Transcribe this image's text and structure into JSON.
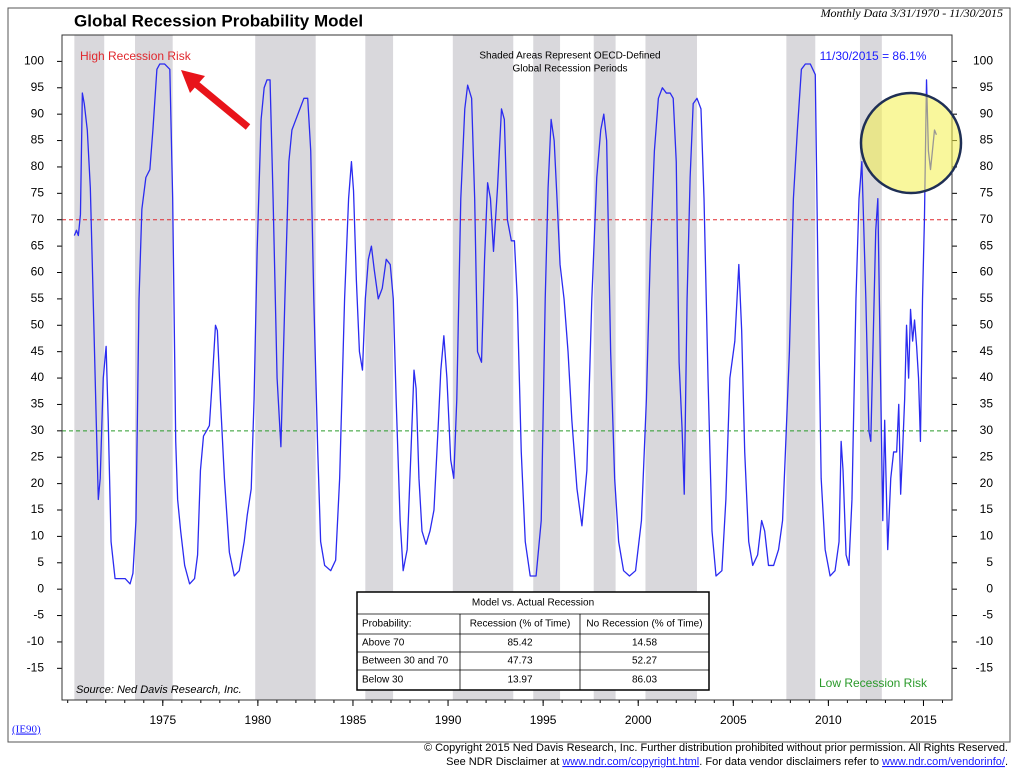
{
  "chart_data": {
    "type": "line",
    "title": "Global Recession Probability Model",
    "subtitle": "Monthly Data 3/31/1970 - 11/30/2015",
    "color": "#2b2bf0",
    "x": [
      1970.35,
      1970.46,
      1970.56,
      1970.67,
      1970.77,
      1970.87,
      1971.03,
      1971.19,
      1971.34,
      1971.5,
      1971.61,
      1971.71,
      1971.87,
      1972.02,
      1972.13,
      1972.28,
      1972.49,
      1972.75,
      1973.02,
      1973.28,
      1973.43,
      1973.59,
      1973.75,
      1973.9,
      1974.11,
      1974.32,
      1974.48,
      1974.69,
      1974.84,
      1975.1,
      1975.37,
      1975.52,
      1975.68,
      1975.78,
      1975.94,
      1976.15,
      1976.41,
      1976.67,
      1976.83,
      1976.98,
      1977.14,
      1977.3,
      1977.45,
      1977.61,
      1977.77,
      1977.87,
      1978.03,
      1978.24,
      1978.5,
      1978.76,
      1979.02,
      1979.28,
      1979.44,
      1979.65,
      1979.8,
      1979.96,
      1980.17,
      1980.33,
      1980.48,
      1980.64,
      1980.8,
      1981.01,
      1981.21,
      1981.42,
      1981.63,
      1981.79,
      1982.0,
      1982.21,
      1982.42,
      1982.62,
      1982.78,
      1982.94,
      1983.15,
      1983.3,
      1983.51,
      1983.83,
      1984.09,
      1984.3,
      1984.56,
      1984.77,
      1984.92,
      1985.03,
      1985.18,
      1985.34,
      1985.5,
      1985.65,
      1985.81,
      1985.97,
      1986.12,
      1986.33,
      1986.54,
      1986.75,
      1986.96,
      1987.12,
      1987.27,
      1987.48,
      1987.64,
      1987.85,
      1988.05,
      1988.21,
      1988.32,
      1988.47,
      1988.63,
      1988.84,
      1989.05,
      1989.26,
      1989.47,
      1989.62,
      1989.78,
      1989.94,
      1990.14,
      1990.3,
      1990.46,
      1990.67,
      1990.88,
      1991.03,
      1991.24,
      1991.4,
      1991.55,
      1991.76,
      1991.92,
      1992.08,
      1992.23,
      1992.39,
      1992.6,
      1992.81,
      1992.96,
      1993.12,
      1993.33,
      1993.49,
      1993.64,
      1993.85,
      1994.06,
      1994.32,
      1994.63,
      1994.9,
      1995.11,
      1995.26,
      1995.42,
      1995.58,
      1995.73,
      1995.89,
      1996.1,
      1996.31,
      1996.51,
      1996.78,
      1997.04,
      1997.3,
      1997.56,
      1997.82,
      1998.03,
      1998.19,
      1998.34,
      1998.55,
      1998.76,
      1998.97,
      1999.23,
      1999.54,
      1999.86,
      2000.17,
      2000.43,
      2000.64,
      2000.85,
      2001.06,
      2001.27,
      2001.48,
      2001.68,
      2001.84,
      2002.0,
      2002.15,
      2002.31,
      2002.42,
      2002.57,
      2002.73,
      2002.89,
      2003.09,
      2003.3,
      2003.46,
      2003.67,
      2003.88,
      2004.09,
      2004.4,
      2004.61,
      2004.82,
      2005.08,
      2005.29,
      2005.44,
      2005.6,
      2005.81,
      2006.02,
      2006.28,
      2006.49,
      2006.65,
      2006.85,
      2007.12,
      2007.38,
      2007.59,
      2007.74,
      2007.95,
      2008.16,
      2008.37,
      2008.58,
      2008.79,
      2009.05,
      2009.31,
      2009.47,
      2009.62,
      2009.83,
      2010.09,
      2010.35,
      2010.56,
      2010.67,
      2010.77,
      2010.93,
      2011.08,
      2011.24,
      2011.45,
      2011.61,
      2011.76,
      2011.97,
      2012.13,
      2012.23,
      2012.34,
      2012.49,
      2012.6,
      2012.76,
      2012.86,
      2012.96,
      2013.12,
      2013.28,
      2013.43,
      2013.59,
      2013.7,
      2013.8,
      2013.9,
      2014.01,
      2014.11,
      2014.22,
      2014.32,
      2014.43,
      2014.53,
      2014.64,
      2014.74,
      2014.84,
      2014.95,
      2015.05,
      2015.16,
      2015.26,
      2015.37,
      2015.47,
      2015.58,
      2015.68
    ],
    "values": [
      67,
      68,
      67,
      71,
      94,
      92,
      87,
      76,
      55,
      32,
      17,
      21,
      40,
      46,
      32,
      9,
      2,
      2,
      2,
      1,
      3,
      13,
      55,
      72,
      78,
      79.5,
      87,
      98.5,
      99.5,
      99.5,
      98.5,
      74,
      28,
      17,
      11,
      4.5,
      1,
      2,
      6.5,
      22.5,
      29,
      30,
      31,
      40,
      50,
      49,
      36,
      21,
      7,
      2.5,
      3.5,
      9,
      14,
      19,
      36,
      64,
      89,
      95,
      96.5,
      96.5,
      74,
      40,
      27,
      55,
      81,
      87,
      89,
      91,
      93,
      93,
      83,
      55,
      26,
      9,
      4.5,
      3.5,
      5.5,
      21,
      55,
      74,
      81,
      75.5,
      58.5,
      45,
      41.5,
      55,
      62.5,
      65,
      60.5,
      55,
      57,
      62.5,
      61.5,
      55,
      36,
      13,
      3.5,
      7.5,
      26,
      41.5,
      38,
      21,
      11,
      8.5,
      11,
      15,
      30,
      41.5,
      48,
      40,
      24.5,
      21,
      36,
      74,
      91,
      95.5,
      93,
      74,
      45,
      43,
      62.5,
      77,
      74,
      64,
      76,
      91,
      89,
      70,
      66,
      66,
      55,
      26,
      9,
      2.5,
      2.5,
      13,
      55,
      76,
      89,
      85,
      74,
      61.5,
      55,
      45,
      32,
      19,
      12,
      22.5,
      55,
      78,
      87,
      90,
      85,
      45,
      21,
      9,
      3.5,
      2.5,
      3.5,
      13,
      36,
      64,
      83,
      93,
      95,
      94,
      94,
      93,
      81,
      43,
      30,
      18,
      55,
      78,
      92,
      93,
      91,
      74,
      40,
      11,
      2.5,
      3.5,
      17,
      40,
      47,
      61.5,
      49,
      26,
      9,
      4.5,
      6.5,
      13,
      11,
      4.5,
      4.5,
      7.5,
      13,
      26,
      45,
      74,
      87,
      98.5,
      99.5,
      99.5,
      97.5,
      55,
      21,
      7.5,
      2.5,
      3.5,
      9,
      28,
      22.5,
      6.5,
      4.5,
      17,
      55,
      74,
      81,
      55,
      30,
      28,
      45,
      68,
      74,
      36,
      13,
      32,
      7.5,
      21,
      26,
      26,
      35,
      18,
      26,
      36,
      50,
      40,
      53,
      47,
      51,
      46,
      40,
      28,
      55,
      70,
      96.5,
      83,
      79.5,
      83,
      87,
      86.1
    ],
    "xlim": [
      1969.7,
      2016.5
    ],
    "xticks": [
      1975,
      1980,
      1985,
      1990,
      1995,
      2000,
      2005,
      2010,
      2015
    ],
    "ylim": [
      -21,
      105
    ],
    "yticks": [
      -15,
      -10,
      -5,
      0,
      5,
      10,
      15,
      20,
      25,
      30,
      35,
      40,
      45,
      50,
      55,
      60,
      65,
      70,
      75,
      80,
      85,
      90,
      95,
      100
    ],
    "shaded_periods": [
      [
        1970.35,
        1971.92
      ],
      [
        1973.54,
        1975.52
      ],
      [
        1979.86,
        1983.04
      ],
      [
        1985.65,
        1987.11
      ],
      [
        1990.25,
        1993.43
      ],
      [
        1994.48,
        1995.89
      ],
      [
        1997.66,
        1998.81
      ],
      [
        2000.38,
        2003.09
      ],
      [
        2007.79,
        2009.31
      ],
      [
        2011.66,
        2012.81
      ]
    ],
    "shade_color": "#d9d8dc",
    "hlines": [
      {
        "value": 70,
        "color": "#e0282e"
      },
      {
        "value": 30,
        "color": "#2a9a2a"
      }
    ],
    "annotations": {
      "high_risk": "High Recession Risk",
      "low_risk": "Low Recession Risk",
      "shading_note": [
        "Shaded Areas Represent OECD-Defined",
        "Global Recession Periods"
      ],
      "latest": "11/30/2015 = 86.1%",
      "source": "Source: Ned Davis Research, Inc.",
      "code": "(IE90)"
    },
    "table": {
      "title": "Model vs. Actual Recession",
      "header": [
        "Probability:",
        "Recession (% of Time)",
        "No Recession (% of Time)"
      ],
      "rows": [
        [
          "Above 70",
          85.42,
          14.58
        ],
        [
          "Between 30 and 70",
          47.73,
          52.27
        ],
        [
          "Below 30",
          13.97,
          86.03
        ]
      ]
    },
    "footer": {
      "line1": "© Copyright 2015 Ned Davis Research, Inc.  Further distribution prohibited without prior permission.  All Rights Reserved.",
      "line2": [
        "See NDR Disclaimer at ",
        "www.ndr.com/copyright.html",
        ". For data vendor disclaimers refer to ",
        "www.ndr.com/vendorinfo/",
        "."
      ]
    }
  }
}
